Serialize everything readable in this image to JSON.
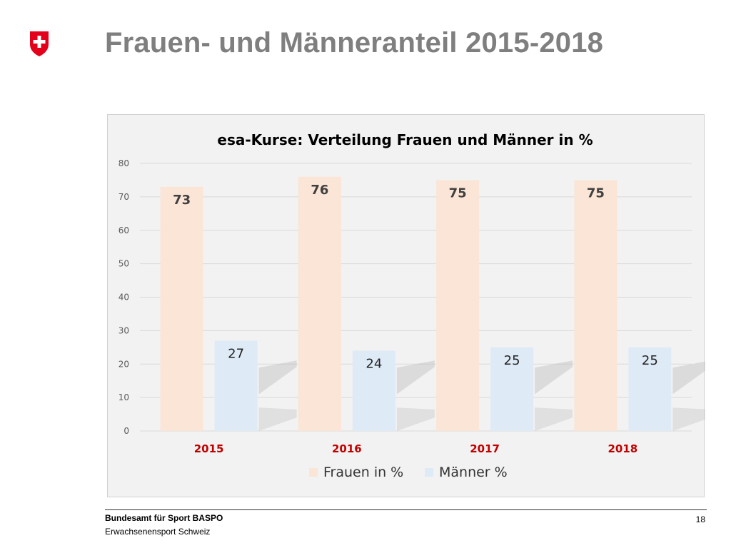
{
  "slide": {
    "title": "Frauen- und Männeranteil 2015-2018",
    "logo_icon": "swiss-cross-icon"
  },
  "footer": {
    "organization": "Bundesamt für Sport BASPO",
    "subtitle": "Erwachsenensport Schweiz",
    "page_number": "18"
  },
  "colors": {
    "frauen": "#fbe5d6",
    "maenner": "#deebf7",
    "year_label": "#c00000",
    "brand_red": "#e3001b"
  },
  "chart_data": {
    "type": "bar",
    "title": "esa-Kurse: Verteilung Frauen und Männer in %",
    "categories": [
      "2015",
      "2016",
      "2017",
      "2018"
    ],
    "series": [
      {
        "name": "Frauen in %",
        "values": [
          73,
          76,
          75,
          75
        ],
        "color": "#fbe5d6"
      },
      {
        "name": "Männer %",
        "values": [
          27,
          24,
          25,
          25
        ],
        "color": "#deebf7"
      }
    ],
    "ylim": [
      0,
      80
    ],
    "yticks": [
      0,
      10,
      20,
      30,
      40,
      50,
      60,
      70,
      80
    ],
    "grid": true,
    "legend": "bottom"
  }
}
